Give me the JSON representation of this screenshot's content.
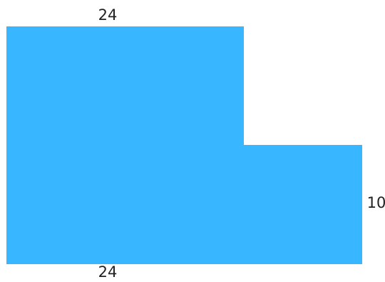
{
  "shape": {
    "fill_color": "#38b6ff"
  },
  "labels": {
    "top_width": "24",
    "bottom_width": "24",
    "right_height": "10"
  }
}
